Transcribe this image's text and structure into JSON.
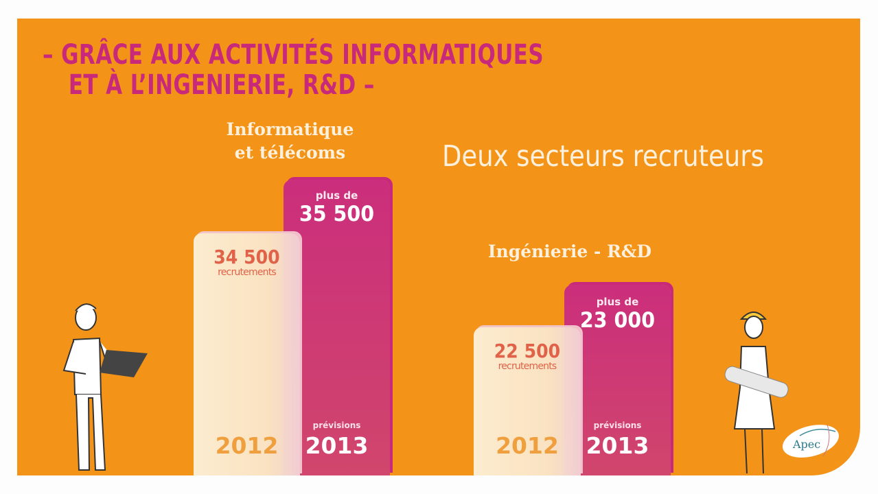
{
  "title": {
    "line1": "– GRÂCE AUX ACTIVITÉS INFORMATIQUES",
    "line2": "ET À L’INGENIERIE, R&D –"
  },
  "subtitle": "Deux secteurs recruteurs",
  "logo_text": "Apec",
  "colors": {
    "background": "#f39419",
    "title": "#c8297a",
    "bar_2012": "#fdf0d8",
    "bar_2013": "#cb2e7c"
  },
  "chart_data": {
    "type": "bar",
    "title": "Deux secteurs recruteurs",
    "groups": [
      {
        "sector": "Informatique et télécoms",
        "sector_line1": "Informatique",
        "sector_line2": "et télécoms",
        "bars": [
          {
            "year": "2012",
            "value": 34500,
            "label": "34 500",
            "caption": "recrutements"
          },
          {
            "year": "2013",
            "value": 35500,
            "prefix": "plus de",
            "label": "35 500",
            "caption": "prévisions"
          }
        ]
      },
      {
        "sector": "Ingénierie - R&D",
        "sector_line1": "Ingénierie - R&D",
        "bars": [
          {
            "year": "2012",
            "value": 22500,
            "label": "22 500",
            "caption": "recrutements"
          },
          {
            "year": "2013",
            "value": 23000,
            "prefix": "plus de",
            "label": "23 000",
            "caption": "prévisions"
          }
        ]
      }
    ]
  }
}
